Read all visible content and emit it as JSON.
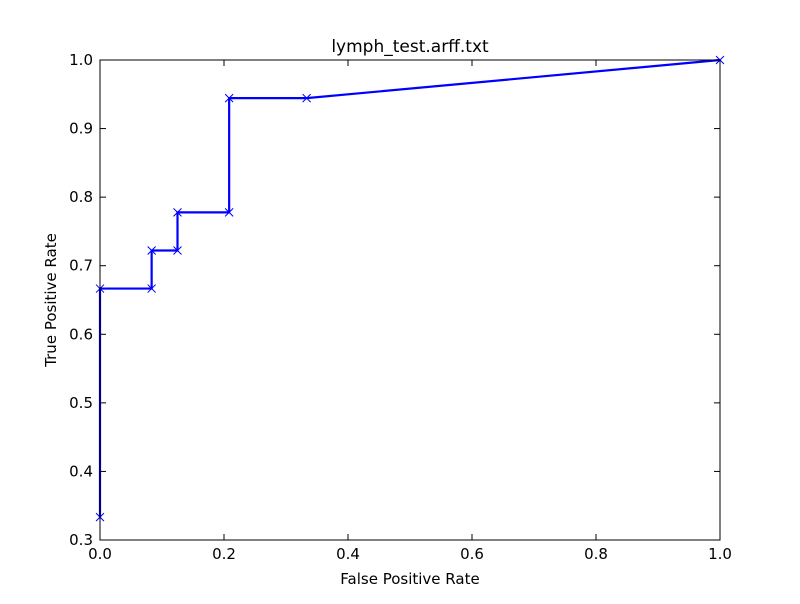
{
  "chart_data": {
    "type": "line",
    "title": "lymph_test.arff.txt",
    "xlabel": "False Positive Rate",
    "ylabel": "True Positive Rate",
    "xlim": [
      0.0,
      1.0
    ],
    "ylim": [
      0.3,
      1.0
    ],
    "xticks": [
      0.0,
      0.2,
      0.4,
      0.6,
      0.8,
      1.0
    ],
    "xtick_labels": [
      "0.0",
      "0.2",
      "0.4",
      "0.6",
      "0.8",
      "1.0"
    ],
    "yticks": [
      0.3,
      0.4,
      0.5,
      0.6,
      0.7,
      0.8,
      0.9,
      1.0
    ],
    "ytick_labels": [
      "0.3",
      "0.4",
      "0.5",
      "0.6",
      "0.7",
      "0.8",
      "0.9",
      "1.0"
    ],
    "grid": false,
    "marker": "x",
    "series": [
      {
        "color": "#0000ff",
        "x": [
          0.0,
          0.0,
          0.0833,
          0.0833,
          0.125,
          0.125,
          0.2083,
          0.2083,
          0.3333,
          1.0
        ],
        "y": [
          0.3333,
          0.6667,
          0.6667,
          0.7222,
          0.7222,
          0.7778,
          0.7778,
          0.9444,
          0.9444,
          1.0
        ]
      }
    ]
  }
}
